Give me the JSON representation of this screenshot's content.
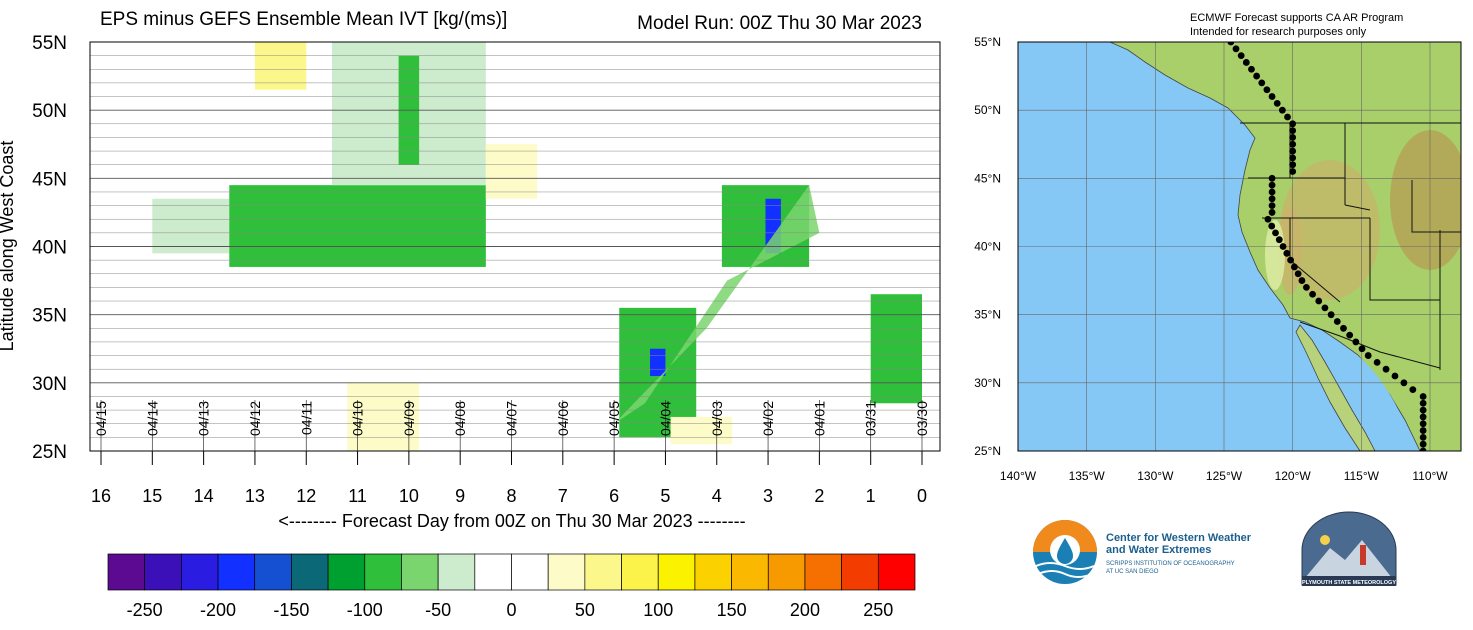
{
  "hovmoller": {
    "title": "EPS minus GEFS Ensemble Mean IVT [kg/(ms)]",
    "model_run": "Model Run: 00Z Thu 30 Mar 2023",
    "ylabel": "Latitude along West Coast",
    "xlabel": "<-------- Forecast Day from 00Z on Thu 30 Mar 2023 --------",
    "lat_ticks": [
      "55N",
      "50N",
      "45N",
      "40N",
      "35N",
      "30N",
      "25N"
    ],
    "day_ticks": [
      "16",
      "15",
      "14",
      "13",
      "12",
      "11",
      "10",
      "9",
      "8",
      "7",
      "6",
      "5",
      "4",
      "3",
      "2",
      "1",
      "0"
    ],
    "date_labels": [
      "04/15",
      "04/14",
      "04/13",
      "04/12",
      "04/11",
      "04/10",
      "04/09",
      "04/08",
      "04/07",
      "04/06",
      "04/05",
      "04/04",
      "04/03",
      "04/02",
      "04/01",
      "03/31",
      "03/30"
    ]
  },
  "colorbar": {
    "colors": [
      "#5b0a91",
      "#3b10b8",
      "#2a1ce0",
      "#1230ff",
      "#1650d2",
      "#0a6877",
      "#00a030",
      "#2fbf3a",
      "#7ad56e",
      "#cdeccd",
      "#ffffff",
      "#ffffff",
      "#fdfcc8",
      "#fcf78a",
      "#fbf24a",
      "#fbf200",
      "#fbd200",
      "#fbb800",
      "#f79a00",
      "#f57000",
      "#f33d00",
      "#ff0000"
    ],
    "labels": [
      "-250",
      "-200",
      "-150",
      "-100",
      "-50",
      "0",
      "50",
      "100",
      "150",
      "200",
      "250"
    ]
  },
  "map": {
    "title_line1": "ECMWF Forecast supports CA AR Program",
    "title_line2": "Intended for research purposes only",
    "lat_labels": [
      "55°N",
      "50°N",
      "45°N",
      "40°N",
      "35°N",
      "30°N",
      "25°N"
    ],
    "lon_labels": [
      "140°W",
      "135°W",
      "130°W",
      "125°W",
      "120°W",
      "115°W",
      "110°W"
    ],
    "ocean_color": "#86c8f5",
    "land_color": "#a8cf6a"
  },
  "logos": {
    "cw3e_line1": "Center for Western Weather",
    "cw3e_line2": "and Water Extremes",
    "cw3e_line3": "SCRIPPS INSTITUTION OF OCEANOGRAPHY",
    "cw3e_line4": "AT UC SAN DIEGO",
    "plymouth": "PLYMOUTH STATE METEOROLOGY"
  },
  "chart_data": {
    "type": "heatmap",
    "title": "EPS minus GEFS Ensemble Mean IVT [kg/(ms)]",
    "xlabel": "<-------- Forecast Day from 00Z on Thu 30 Mar 2023 --------",
    "ylabel": "Latitude along West Coast",
    "xlim": [
      16,
      0
    ],
    "ylim": [
      25,
      55
    ],
    "units": "kg/(ms)",
    "levels": [
      -250,
      -200,
      -150,
      -100,
      -50,
      0,
      50,
      100,
      150,
      200,
      250
    ],
    "features": [
      {
        "day_range": [
          15.0,
          13.5
        ],
        "lat_range": [
          39.5,
          43.5
        ],
        "approx_value": -40
      },
      {
        "day_range": [
          13.5,
          8.5
        ],
        "lat_range": [
          38.5,
          44.5
        ],
        "approx_value": -75
      },
      {
        "day_range": [
          11.5,
          8.5
        ],
        "lat_range": [
          44.5,
          56.0
        ],
        "approx_value": -40
      },
      {
        "day_range": [
          10.2,
          9.8
        ],
        "lat_range": [
          46.0,
          54.0
        ],
        "approx_value": -80
      },
      {
        "day_range": [
          5.9,
          4.4
        ],
        "lat_range": [
          26.0,
          35.5
        ],
        "approx_value": -85
      },
      {
        "day_range": [
          5.3,
          5.0
        ],
        "lat_range": [
          30.5,
          32.5
        ],
        "approx_value": -160
      },
      {
        "day_range": [
          3.9,
          2.2
        ],
        "lat_range": [
          38.5,
          44.5
        ],
        "approx_value": -90
      },
      {
        "day_range": [
          3.05,
          2.75
        ],
        "lat_range": [
          39.5,
          43.5
        ],
        "approx_value": -180
      },
      {
        "day_range": [
          1.0,
          0.0
        ],
        "lat_range": [
          28.5,
          36.5
        ],
        "approx_value": -70
      },
      {
        "day_range": [
          13.0,
          12.0
        ],
        "lat_range": [
          51.5,
          55.0
        ],
        "approx_value": 50
      },
      {
        "day_range": [
          11.2,
          9.8
        ],
        "lat_range": [
          25.0,
          30.0
        ],
        "approx_value": 30
      },
      {
        "day_range": [
          4.9,
          3.7
        ],
        "lat_range": [
          25.5,
          27.5
        ],
        "approx_value": 30
      },
      {
        "day_range": [
          8.5,
          7.5
        ],
        "lat_range": [
          43.5,
          47.5
        ],
        "approx_value": 30
      }
    ]
  }
}
